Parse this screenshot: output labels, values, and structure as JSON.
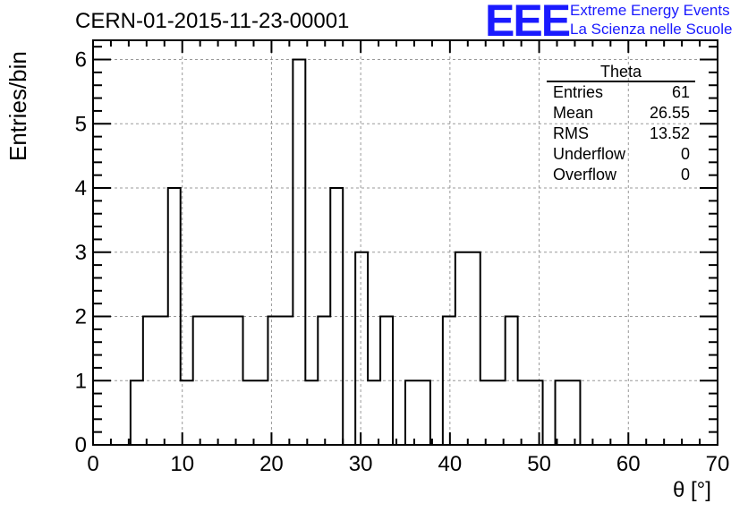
{
  "header": {
    "title": "CERN-01-2015-11-23-00001",
    "logo_text": "EEE",
    "logo_line1": "Extreme Energy Events",
    "logo_line2": "La Scienza nelle Scuole"
  },
  "stats_box": {
    "title": "Theta",
    "rows": [
      {
        "label": "Entries",
        "value": "61"
      },
      {
        "label": "Mean",
        "value": "26.55"
      },
      {
        "label": "RMS",
        "value": "13.52"
      },
      {
        "label": "Underflow",
        "value": "0"
      },
      {
        "label": "Overflow",
        "value": "0"
      }
    ]
  },
  "chart_data": {
    "type": "bar",
    "subtype": "histogram",
    "bin_width": 1.4,
    "bins": [
      {
        "x0": 4.2,
        "x1": 5.6,
        "count": 1
      },
      {
        "x0": 5.6,
        "x1": 7.0,
        "count": 2
      },
      {
        "x0": 7.0,
        "x1": 8.4,
        "count": 2
      },
      {
        "x0": 8.4,
        "x1": 9.8,
        "count": 4
      },
      {
        "x0": 9.8,
        "x1": 11.2,
        "count": 1
      },
      {
        "x0": 11.2,
        "x1": 12.6,
        "count": 2
      },
      {
        "x0": 12.6,
        "x1": 14.0,
        "count": 2
      },
      {
        "x0": 14.0,
        "x1": 15.4,
        "count": 2
      },
      {
        "x0": 15.4,
        "x1": 16.8,
        "count": 2
      },
      {
        "x0": 16.8,
        "x1": 18.2,
        "count": 1
      },
      {
        "x0": 18.2,
        "x1": 19.6,
        "count": 1
      },
      {
        "x0": 19.6,
        "x1": 21.0,
        "count": 2
      },
      {
        "x0": 21.0,
        "x1": 22.4,
        "count": 2
      },
      {
        "x0": 22.4,
        "x1": 23.8,
        "count": 6
      },
      {
        "x0": 23.8,
        "x1": 25.2,
        "count": 1
      },
      {
        "x0": 25.2,
        "x1": 26.6,
        "count": 2
      },
      {
        "x0": 26.6,
        "x1": 28.0,
        "count": 4
      },
      {
        "x0": 28.0,
        "x1": 29.4,
        "count": 0
      },
      {
        "x0": 29.4,
        "x1": 30.8,
        "count": 3
      },
      {
        "x0": 30.8,
        "x1": 32.2,
        "count": 1
      },
      {
        "x0": 32.2,
        "x1": 33.6,
        "count": 2
      },
      {
        "x0": 33.6,
        "x1": 35.0,
        "count": 0
      },
      {
        "x0": 35.0,
        "x1": 36.4,
        "count": 1
      },
      {
        "x0": 36.4,
        "x1": 37.8,
        "count": 1
      },
      {
        "x0": 37.8,
        "x1": 39.2,
        "count": 0
      },
      {
        "x0": 39.2,
        "x1": 40.6,
        "count": 2
      },
      {
        "x0": 40.6,
        "x1": 42.0,
        "count": 3
      },
      {
        "x0": 42.0,
        "x1": 43.4,
        "count": 3
      },
      {
        "x0": 43.4,
        "x1": 44.8,
        "count": 1
      },
      {
        "x0": 44.8,
        "x1": 46.2,
        "count": 1
      },
      {
        "x0": 46.2,
        "x1": 47.6,
        "count": 2
      },
      {
        "x0": 47.6,
        "x1": 49.0,
        "count": 1
      },
      {
        "x0": 49.0,
        "x1": 50.4,
        "count": 1
      },
      {
        "x0": 50.4,
        "x1": 51.8,
        "count": 0
      },
      {
        "x0": 51.8,
        "x1": 53.2,
        "count": 1
      },
      {
        "x0": 53.2,
        "x1": 54.6,
        "count": 1
      }
    ],
    "title": "CERN-01-2015-11-23-00001",
    "xlabel": "θ [°]",
    "ylabel": "Entries/bin",
    "xlim": [
      0,
      70
    ],
    "ylim": [
      0,
      6.3
    ],
    "xticks": [
      0,
      10,
      20,
      30,
      40,
      50,
      60,
      70
    ],
    "yticks": [
      0,
      1,
      2,
      3,
      4,
      5,
      6
    ],
    "grid": true,
    "line_color": "#000000",
    "grid_color": "#999999"
  }
}
